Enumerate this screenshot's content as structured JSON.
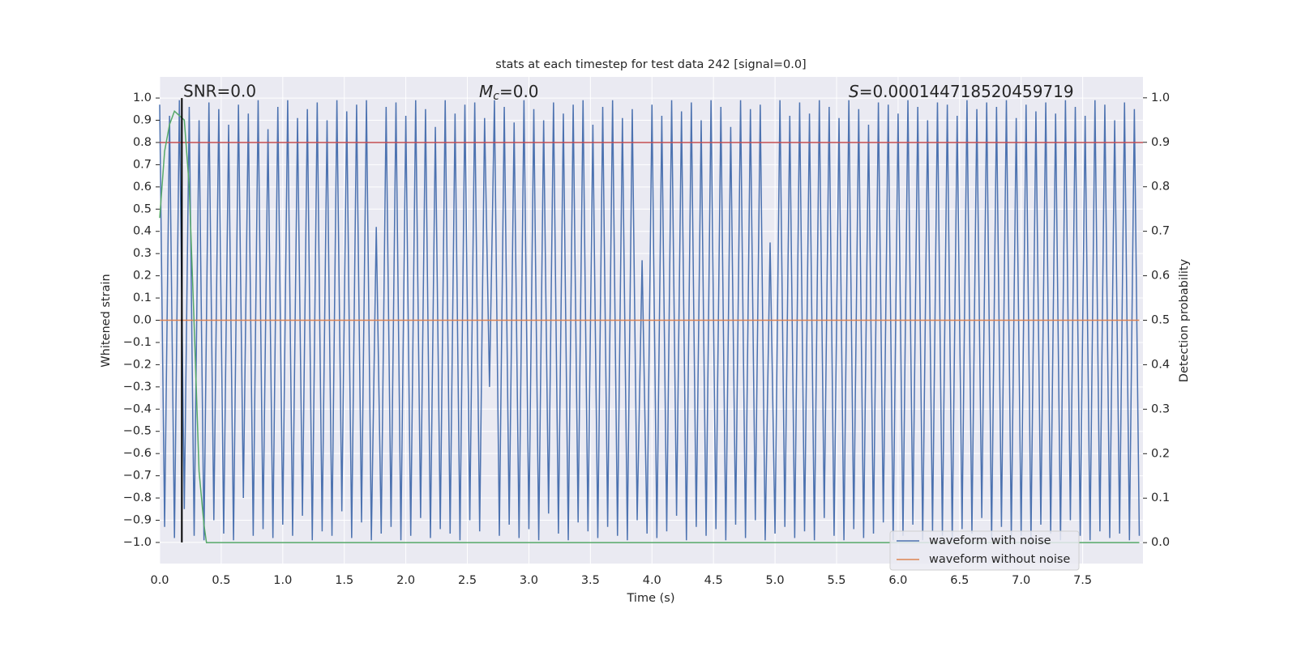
{
  "chart_data": {
    "type": "line",
    "title": "stats at each timestep for test data 242 [signal=0.0]",
    "xlabel": "Time (s)",
    "ylabel": "Whitened strain",
    "y2label": "Detection probability",
    "annotations": {
      "snr": {
        "text": "SNR=0.0"
      },
      "mc": {
        "symbol": "M",
        "sub": "c",
        "text": "=0.0"
      },
      "s": {
        "symbol": "S",
        "text": "=0.000144718520459719"
      }
    },
    "grid": true,
    "legend": "lower right",
    "xlim": [
      0,
      7.99
    ],
    "ylim": [
      -1.095,
      1.095
    ],
    "y2lim": [
      -0.047,
      1.047
    ],
    "xticks": [
      {
        "value": 0,
        "label": "0.0"
      },
      {
        "value": 0.5,
        "label": "0.5"
      },
      {
        "value": 1,
        "label": "1.0"
      },
      {
        "value": 1.5,
        "label": "1.5"
      },
      {
        "value": 2,
        "label": "2.0"
      },
      {
        "value": 2.5,
        "label": "2.5"
      },
      {
        "value": 3,
        "label": "3.0"
      },
      {
        "value": 3.5,
        "label": "3.5"
      },
      {
        "value": 4,
        "label": "4.0"
      },
      {
        "value": 4.5,
        "label": "4.5"
      },
      {
        "value": 5,
        "label": "5.0"
      },
      {
        "value": 5.5,
        "label": "5.5"
      },
      {
        "value": 6,
        "label": "6.0"
      },
      {
        "value": 6.5,
        "label": "6.5"
      },
      {
        "value": 7,
        "label": "7.0"
      },
      {
        "value": 7.5,
        "label": "7.5"
      }
    ],
    "yticks": [
      {
        "value": -1,
        "label": "−1.0"
      },
      {
        "value": -0.9,
        "label": "−0.9"
      },
      {
        "value": -0.8,
        "label": "−0.8"
      },
      {
        "value": -0.7,
        "label": "−0.7"
      },
      {
        "value": -0.6,
        "label": "−0.6"
      },
      {
        "value": -0.5,
        "label": "−0.5"
      },
      {
        "value": -0.4,
        "label": "−0.4"
      },
      {
        "value": -0.3,
        "label": "−0.3"
      },
      {
        "value": -0.2,
        "label": "−0.2"
      },
      {
        "value": -0.1,
        "label": "−0.1"
      },
      {
        "value": 0,
        "label": "0.0"
      },
      {
        "value": 0.1,
        "label": "0.1"
      },
      {
        "value": 0.2,
        "label": "0.2"
      },
      {
        "value": 0.3,
        "label": "0.3"
      },
      {
        "value": 0.4,
        "label": "0.4"
      },
      {
        "value": 0.5,
        "label": "0.5"
      },
      {
        "value": 0.6,
        "label": "0.6"
      },
      {
        "value": 0.7,
        "label": "0.7"
      },
      {
        "value": 0.8,
        "label": "0.8"
      },
      {
        "value": 0.9,
        "label": "0.9"
      },
      {
        "value": 1,
        "label": "1.0"
      }
    ],
    "y2ticks": [
      {
        "value": 0,
        "label": "0.0"
      },
      {
        "value": 0.1,
        "label": "0.1"
      },
      {
        "value": 0.2,
        "label": "0.2"
      },
      {
        "value": 0.3,
        "label": "0.3"
      },
      {
        "value": 0.4,
        "label": "0.4"
      },
      {
        "value": 0.5,
        "label": "0.5"
      },
      {
        "value": 0.6,
        "label": "0.6"
      },
      {
        "value": 0.7,
        "label": "0.7"
      },
      {
        "value": 0.8,
        "label": "0.8"
      },
      {
        "value": 0.9,
        "label": "0.9"
      },
      {
        "value": 1,
        "label": "1.0"
      }
    ],
    "series": [
      {
        "name": "waveform with noise",
        "color": "#4c72b0",
        "x": [
          0,
          0.04,
          0.08,
          0.12,
          0.16,
          0.2,
          0.24,
          0.28,
          0.32,
          0.36,
          0.4,
          0.44,
          0.48,
          0.52,
          0.56,
          0.6,
          0.64,
          0.68,
          0.72,
          0.76,
          0.8,
          0.84,
          0.88,
          0.92,
          0.96,
          1,
          1.04,
          1.08,
          1.12,
          1.16,
          1.2,
          1.24,
          1.28,
          1.32,
          1.36,
          1.4,
          1.44,
          1.48,
          1.52,
          1.56,
          1.6,
          1.64,
          1.68,
          1.72,
          1.76,
          1.8,
          1.84,
          1.88,
          1.92,
          1.96,
          2,
          2.04,
          2.08,
          2.12,
          2.16,
          2.2,
          2.24,
          2.28,
          2.32,
          2.36,
          2.4,
          2.44,
          2.48,
          2.52,
          2.56,
          2.6,
          2.64,
          2.68,
          2.72,
          2.76,
          2.8,
          2.84,
          2.88,
          2.92,
          2.96,
          3,
          3.04,
          3.08,
          3.12,
          3.16,
          3.2,
          3.24,
          3.28,
          3.32,
          3.36,
          3.4,
          3.44,
          3.48,
          3.52,
          3.56,
          3.6,
          3.64,
          3.68,
          3.72,
          3.76,
          3.8,
          3.84,
          3.88,
          3.92,
          3.96,
          4,
          4.04,
          4.08,
          4.12,
          4.16,
          4.2,
          4.24,
          4.28,
          4.32,
          4.36,
          4.4,
          4.44,
          4.48,
          4.52,
          4.56,
          4.6,
          4.64,
          4.68,
          4.72,
          4.76,
          4.8,
          4.84,
          4.88,
          4.92,
          4.96,
          5,
          5.04,
          5.08,
          5.12,
          5.16,
          5.2,
          5.24,
          5.28,
          5.32,
          5.36,
          5.4,
          5.44,
          5.48,
          5.52,
          5.56,
          5.6,
          5.64,
          5.68,
          5.72,
          5.76,
          5.8,
          5.84,
          5.88,
          5.92,
          5.96,
          6,
          6.04,
          6.08,
          6.12,
          6.16,
          6.2,
          6.24,
          6.28,
          6.32,
          6.36,
          6.4,
          6.44,
          6.48,
          6.52,
          6.56,
          6.6,
          6.64,
          6.68,
          6.72,
          6.76,
          6.8,
          6.84,
          6.88,
          6.92,
          6.96,
          7,
          7.04,
          7.08,
          7.12,
          7.16,
          7.2,
          7.24,
          7.28,
          7.32,
          7.36,
          7.4,
          7.44,
          7.48,
          7.52,
          7.56,
          7.6,
          7.64,
          7.68,
          7.72,
          7.76,
          7.8,
          7.84,
          7.88,
          7.92,
          7.96
        ],
        "values": [
          0.97,
          -0.93,
          0.92,
          -0.98,
          0.99,
          -0.85,
          0.96,
          -0.97,
          0.9,
          -0.99,
          0.98,
          -0.9,
          0.95,
          -0.96,
          0.88,
          -0.99,
          0.97,
          -0.8,
          0.93,
          -0.97,
          0.99,
          -0.94,
          0.86,
          -0.98,
          0.96,
          -0.92,
          0.99,
          -0.97,
          0.91,
          -0.88,
          0.95,
          -0.99,
          0.98,
          -0.95,
          0.9,
          -0.97,
          0.99,
          -0.86,
          0.94,
          -0.98,
          0.97,
          -0.91,
          0.99,
          -0.99,
          0.42,
          -0.96,
          0.96,
          -0.93,
          0.98,
          -0.99,
          0.92,
          -0.97,
          0.99,
          -0.89,
          0.95,
          -0.98,
          0.87,
          -0.94,
          0.99,
          -0.96,
          0.93,
          -0.99,
          0.97,
          -0.9,
          0.98,
          -0.95,
          0.91,
          -0.3,
          0.99,
          -0.97,
          0.96,
          -0.92,
          0.89,
          -0.98,
          0.99,
          -0.94,
          0.95,
          -0.99,
          0.9,
          -0.87,
          0.98,
          -0.96,
          0.93,
          -0.99,
          0.97,
          -0.91,
          0.99,
          -0.95,
          0.88,
          -0.98,
          0.96,
          -0.93,
          0.99,
          -0.97,
          0.91,
          -0.99,
          0.95,
          -0.9,
          0.27,
          -0.96,
          0.97,
          -0.98,
          0.92,
          -0.95,
          0.99,
          -0.88,
          0.94,
          -0.99,
          0.98,
          -0.93,
          0.9,
          -0.97,
          0.99,
          -0.94,
          0.96,
          -0.99,
          0.87,
          -0.92,
          0.99,
          -0.98,
          0.95,
          -0.9,
          0.97,
          -0.99,
          0.35,
          -0.96,
          0.99,
          -0.93,
          0.92,
          -0.98,
          0.98,
          -0.95,
          0.93,
          -0.99,
          0.99,
          -0.89,
          0.96,
          -0.97,
          0.91,
          -0.99,
          0.99,
          -0.94,
          0.95,
          -0.98,
          0.88,
          -0.96,
          0.98,
          -0.91,
          0.97,
          -0.99,
          0.93,
          -0.97,
          0.99,
          -0.92,
          0.96,
          -0.99,
          0.9,
          -0.95,
          0.98,
          -0.97,
          0.97,
          -0.99,
          0.92,
          -0.94,
          0.99,
          -0.96,
          0.95,
          -0.89,
          0.98,
          -0.99,
          0.96,
          -0.93,
          0.99,
          -0.98,
          0.91,
          -0.97,
          0.97,
          -0.99,
          0.94,
          -0.92,
          0.98,
          -0.96,
          0.93,
          -0.99,
          0.99,
          -0.9,
          0.96,
          -0.97,
          0.92,
          -0.99,
          0.99,
          -0.95,
          0.97,
          -0.98,
          0.9,
          -0.96,
          0.98,
          -0.99,
          0.95,
          -0.97
        ]
      },
      {
        "name": "waveform without noise",
        "color": "#dd8452",
        "x": [
          0,
          7.96
        ],
        "values": [
          0,
          0
        ]
      }
    ],
    "threshold": {
      "value": 0.8,
      "color": "#c44e52"
    },
    "detection": {
      "axis": "y2",
      "color": "#55a868",
      "x": [
        0,
        0.04,
        0.08,
        0.12,
        0.16,
        0.2,
        0.24,
        0.28,
        0.32,
        0.36,
        0.38,
        0.4,
        7.96
      ],
      "values": [
        0.73,
        0.88,
        0.94,
        0.97,
        0.96,
        0.95,
        0.8,
        0.49,
        0.16,
        0.04,
        0,
        0,
        0
      ]
    },
    "marker_x": 0.18,
    "marker_color": "#000000"
  }
}
